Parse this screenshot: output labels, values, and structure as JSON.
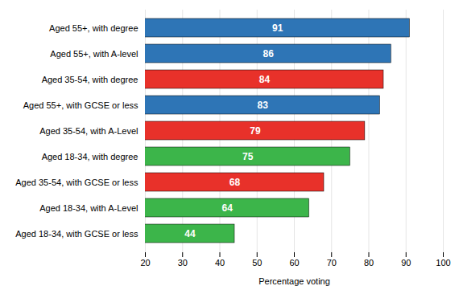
{
  "chart_data": {
    "type": "bar",
    "orientation": "horizontal",
    "categories": [
      "Aged 18-34, with GCSE or less",
      "Aged 18-34, with A-Level",
      "Aged 35-54, with GCSE or less",
      "Aged 18-34, with degree",
      "Aged 35-54, with A-Level",
      "Aged 55+, with GCSE or less",
      "Aged 35-54, with degree",
      "Aged 55+, with A-level",
      "Aged 55+, with degree"
    ],
    "values": [
      44,
      64,
      68,
      75,
      79,
      83,
      84,
      86,
      91
    ],
    "colors": [
      "#3cb54a",
      "#3cb54a",
      "#e8312a",
      "#3cb54a",
      "#e8312a",
      "#2e75b6",
      "#e8312a",
      "#2e75b6",
      "#2e75b6"
    ],
    "xlabel": "Percentage voting",
    "xlim": [
      20,
      100
    ],
    "xticks": [
      20,
      30,
      40,
      50,
      60,
      70,
      80,
      90,
      100
    ],
    "grid": true,
    "data_labels": true
  }
}
